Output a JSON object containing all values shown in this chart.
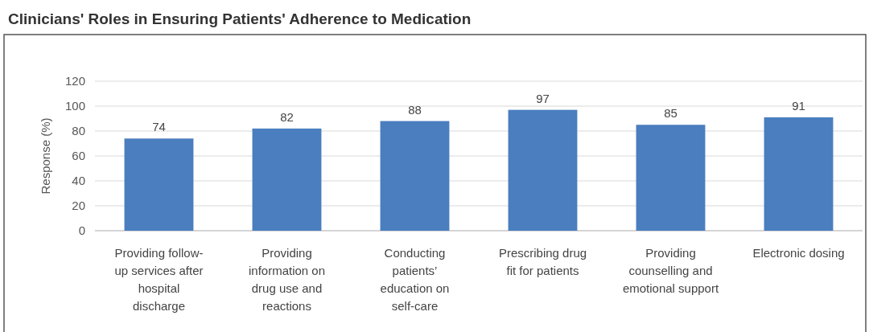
{
  "chart_data": {
    "type": "bar",
    "title": "Clinicians' Roles in Ensuring Patients' Adherence to Medication",
    "ylabel": "Response (%)",
    "categories": [
      "Providing follow-up services after hospital discharge",
      "Providing information on drug use and reactions",
      "Conducting patients’ education on self-care",
      "Prescribing drug fit for patients",
      "Providing counselling and emotional support",
      "Electronic dosing"
    ],
    "values": [
      74,
      82,
      88,
      97,
      85,
      91
    ],
    "color": "#4a7ebf",
    "ylim": [
      0,
      120
    ],
    "yticks": [
      0,
      20,
      40,
      60,
      80,
      100,
      120
    ],
    "grid": "y",
    "data_labels": true
  }
}
